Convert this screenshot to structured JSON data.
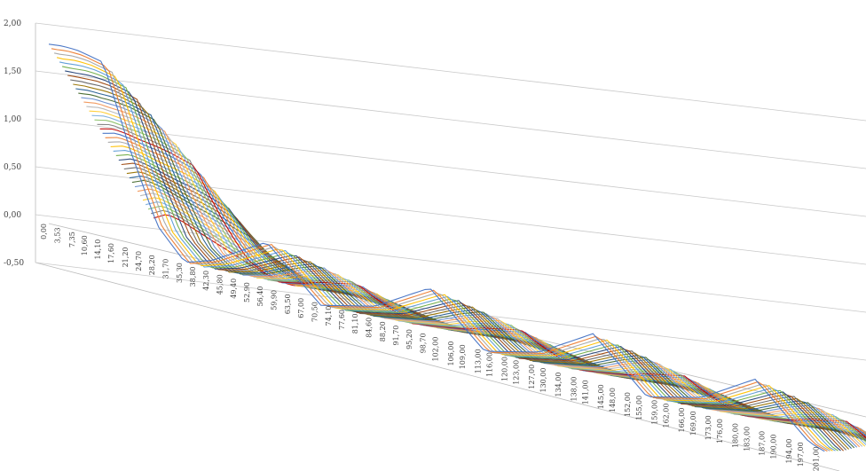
{
  "chart_data": {
    "type": "area",
    "subtype": "3d-surface-lines",
    "title": "",
    "xlabel": "",
    "ylabel": "",
    "ylim": [
      -0.5,
      2.0
    ],
    "y_ticks": [
      "2,00",
      "1,50",
      "1,00",
      "0,50",
      "0,00",
      "-0,50"
    ],
    "y_tick_values": [
      2.0,
      1.5,
      1.0,
      0.5,
      0.0,
      -0.5
    ],
    "x_ticks": [
      "0,00",
      "3,53",
      "7,35",
      "10,60",
      "14,10",
      "17,60",
      "21,20",
      "24,70",
      "28,20",
      "31,70",
      "35,30",
      "38,80",
      "42,30",
      "45,80",
      "49,40",
      "52,90",
      "56,40",
      "59,90",
      "63,50",
      "67,00",
      "70,50",
      "74,10",
      "77,60",
      "81,10",
      "84,60",
      "88,20",
      "91,70",
      "95,20",
      "98,70",
      "102,00",
      "106,00",
      "109,00",
      "113,00",
      "116,00",
      "120,00",
      "123,00",
      "127,00",
      "130,00",
      "134,00",
      "138,00",
      "141,00",
      "145,00",
      "148,00",
      "152,00",
      "155,00",
      "159,00",
      "162,00",
      "166,00",
      "169,00",
      "173,00",
      "176,00",
      "180,00",
      "183,00",
      "187,00",
      "190,00",
      "194,00",
      "197,00",
      "201,00"
    ],
    "x_range": [
      0,
      201
    ],
    "series_count": 40,
    "series_colors": [
      "#4472c4",
      "#ed7d31",
      "#a5a5a5",
      "#ffc000",
      "#5b9bd5",
      "#70ad47",
      "#264478",
      "#9e480e",
      "#636363",
      "#997300",
      "#255e91",
      "#43682b",
      "#698ed0",
      "#f1975a",
      "#b7b7b7",
      "#ffcd33",
      "#7cafdd",
      "#8cc168",
      "#7f7f7f",
      "#c00000"
    ],
    "profile": {
      "description_free": true,
      "front_series": {
        "x": [
          0,
          3.53,
          7.35,
          14.1,
          21.2,
          28.2,
          35.3,
          42.3,
          56.4,
          70.5,
          84.6,
          98.7,
          113,
          127,
          141,
          155,
          169,
          183,
          197,
          201
        ],
        "y": [
          1.78,
          1.8,
          1.8,
          1.75,
          0.9,
          0.2,
          -0.1,
          0.0,
          0.35,
          -0.15,
          0.0,
          0.35,
          -0.15,
          0.0,
          0.35,
          -0.15,
          0.0,
          0.35,
          -0.15,
          -0.2
        ]
      },
      "back_series": {
        "x": [
          0,
          3.53,
          7.35,
          14.1,
          21.2,
          28.2,
          35.3,
          42.3,
          56.4,
          70.5,
          84.6,
          98.7,
          113,
          127,
          141,
          155,
          169,
          183,
          197,
          201
        ],
        "y": [
          0.2,
          0.28,
          0.25,
          0.15,
          0.05,
          -0.05,
          -0.1,
          -0.05,
          0.0,
          -0.1,
          -0.05,
          0.0,
          -0.1,
          -0.05,
          0.0,
          -0.1,
          -0.05,
          0.0,
          -0.1,
          -0.15
        ]
      }
    }
  }
}
